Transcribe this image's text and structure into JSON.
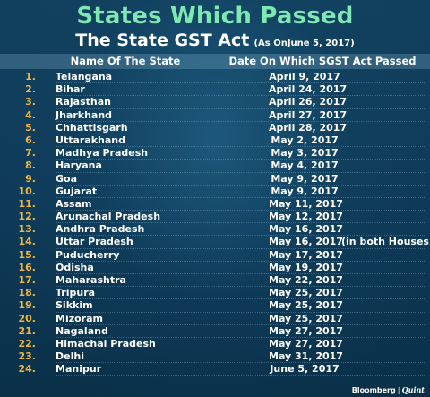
{
  "header": {
    "title": "States Which Passed",
    "subtitle": "The State GST Act",
    "subtitle_note": "(As OnJune 5, 2017)"
  },
  "columns": {
    "state": "Name Of The State",
    "date": "Date On Which SGST Act Passed"
  },
  "rows": [
    {
      "num": "1.",
      "state": "Telangana",
      "date": "April 9, 2017",
      "note": ""
    },
    {
      "num": "2.",
      "state": "Bihar",
      "date": "April 24, 2017",
      "note": ""
    },
    {
      "num": "3.",
      "state": "Rajasthan",
      "date": "April 26, 2017",
      "note": ""
    },
    {
      "num": "4.",
      "state": "Jharkhand",
      "date": "April 27, 2017",
      "note": ""
    },
    {
      "num": "5.",
      "state": "Chhattisgarh",
      "date": "April 28, 2017",
      "note": ""
    },
    {
      "num": "6.",
      "state": "Uttarakhand",
      "date": "May 2, 2017",
      "note": ""
    },
    {
      "num": "7.",
      "state": "Madhya Pradesh",
      "date": "May 3, 2017",
      "note": ""
    },
    {
      "num": "8.",
      "state": "Haryana",
      "date": "May 4, 2017",
      "note": ""
    },
    {
      "num": "9.",
      "state": "Goa",
      "date": "May 9, 2017",
      "note": ""
    },
    {
      "num": "10.",
      "state": "Gujarat",
      "date": "May 9, 2017",
      "note": ""
    },
    {
      "num": "11.",
      "state": "Assam",
      "date": "May 11, 2017",
      "note": ""
    },
    {
      "num": "12.",
      "state": "Arunachal Pradesh",
      "date": "May 12, 2017",
      "note": ""
    },
    {
      "num": "13.",
      "state": "Andhra Pradesh",
      "date": "May 16, 2017",
      "note": ""
    },
    {
      "num": "14.",
      "state": "Uttar Pradesh",
      "date": "May 16, 2017",
      "note": "(in both Houses)"
    },
    {
      "num": "15.",
      "state": "Puducherry",
      "date": "May 17, 2017",
      "note": ""
    },
    {
      "num": "16.",
      "state": "Odisha",
      "date": "May 19, 2017",
      "note": ""
    },
    {
      "num": "17.",
      "state": "Maharashtra",
      "date": "May 22, 2017",
      "note": ""
    },
    {
      "num": "18.",
      "state": "Tripura",
      "date": "May 25, 2017",
      "note": ""
    },
    {
      "num": "19.",
      "state": "Sikkim",
      "date": "May 25, 2017",
      "note": ""
    },
    {
      "num": "20.",
      "state": "Mizoram",
      "date": "May 25, 2017",
      "note": ""
    },
    {
      "num": "21.",
      "state": "Nagaland",
      "date": "May 27, 2017",
      "note": ""
    },
    {
      "num": "22.",
      "state": "Himachal Pradesh",
      "date": "May 27, 2017",
      "note": ""
    },
    {
      "num": "23.",
      "state": "Delhi",
      "date": "May 31, 2017",
      "note": ""
    },
    {
      "num": "24.",
      "state": "Manipur",
      "date": "June 5, 2017",
      "note": ""
    }
  ],
  "branding": {
    "name": "Bloomberg",
    "separator": "|",
    "partner": "Quint"
  },
  "colors": {
    "background": "#0e3a57",
    "title": "#7fe7b2",
    "number": "#f4b53c",
    "text": "#ffffff"
  }
}
